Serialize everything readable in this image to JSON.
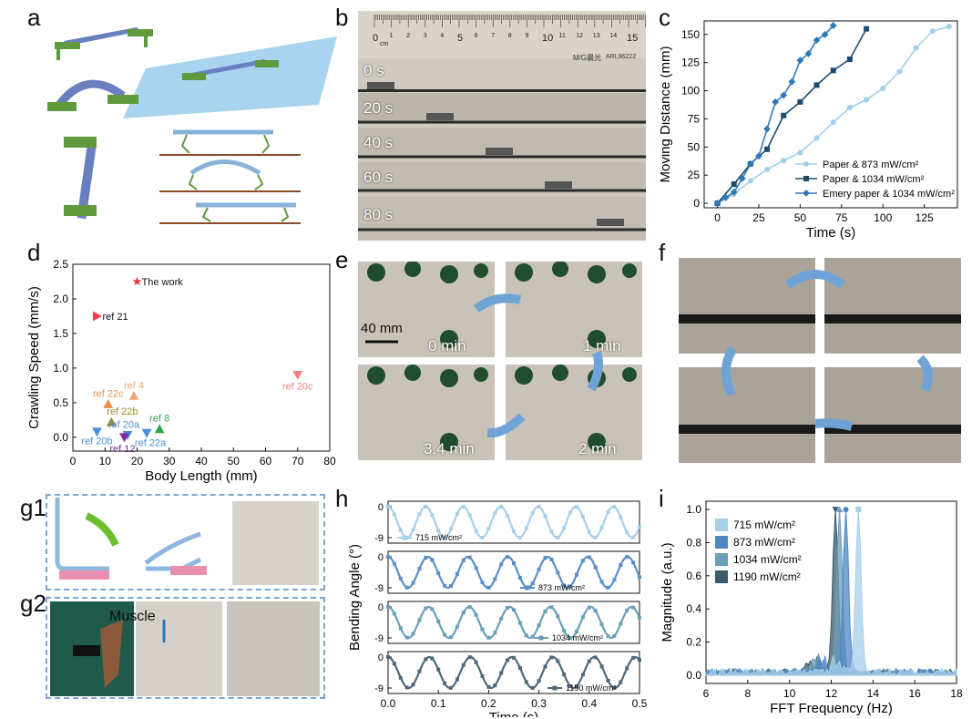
{
  "panels": {
    "a": "a",
    "b": "b",
    "c": "c",
    "d": "d",
    "e": "e",
    "f": "f",
    "g1": "g1",
    "g2": "g2",
    "h": "h",
    "i": "i"
  },
  "panel_b": {
    "ruler_numbers": [
      "0",
      "1",
      "2",
      "3",
      "4",
      "5",
      "6",
      "7",
      "8",
      "9",
      "10",
      "11",
      "12",
      "13",
      "14",
      "15"
    ],
    "ruler_unit": "cm",
    "brand_text": "M/G晨光",
    "model_text": "ARL96222",
    "times": [
      "0 s",
      "20 s",
      "40 s",
      "60 s",
      "80 s"
    ]
  },
  "panel_e": {
    "scale_label": "40 mm",
    "times": [
      "0 min",
      "1 min",
      "3.4 min",
      "2 min"
    ]
  },
  "panel_g2": {
    "label": "Muscle"
  },
  "chart_data": [
    {
      "id": "c",
      "type": "line",
      "title": "",
      "xlabel": "Time (s)",
      "ylabel": "Moving Distance (mm)",
      "xlim": [
        -8,
        145
      ],
      "ylim": [
        -4,
        162
      ],
      "xticks": [
        0,
        25,
        50,
        75,
        100,
        125
      ],
      "yticks": [
        0,
        25,
        50,
        75,
        100,
        125,
        150
      ],
      "legend_position": "bottom-right",
      "series": [
        {
          "name": "Paper & 873 mW/cm²",
          "color": "#9fd0ea",
          "marker": "circle",
          "x": [
            0,
            10,
            20,
            30,
            40,
            50,
            60,
            70,
            80,
            90,
            100,
            110,
            120,
            130,
            140
          ],
          "y": [
            0,
            8,
            20,
            30,
            38,
            45,
            58,
            72,
            85,
            92,
            102,
            117,
            138,
            153,
            157
          ]
        },
        {
          "name": "Paper & 1034 mW/cm²",
          "color": "#1e4a6e",
          "marker": "square",
          "x": [
            0,
            10,
            20,
            30,
            40,
            50,
            60,
            70,
            80,
            90
          ],
          "y": [
            0,
            17,
            35,
            48,
            78,
            90,
            105,
            118,
            128,
            155
          ]
        },
        {
          "name": "Emery paper & 1034 mW/cm²",
          "color": "#2f78b8",
          "marker": "diamond",
          "x": [
            0,
            5,
            10,
            15,
            20,
            25,
            30,
            35,
            40,
            45,
            50,
            55,
            60,
            65,
            70
          ],
          "y": [
            0,
            5,
            10,
            22,
            35,
            42,
            66,
            90,
            96,
            108,
            127,
            133,
            145,
            150,
            158
          ]
        }
      ]
    },
    {
      "id": "d",
      "type": "scatter",
      "title": "",
      "xlabel": "Body Length (mm)",
      "ylabel": "Crawling Speed (mm/s)",
      "xlim": [
        0,
        80
      ],
      "ylim": [
        -0.2,
        2.5
      ],
      "xticks": [
        0,
        10,
        20,
        30,
        40,
        50,
        60,
        70,
        80
      ],
      "yticks": [
        0.0,
        0.5,
        1.0,
        1.5,
        2.0,
        2.5
      ],
      "points": [
        {
          "label": "The work",
          "x": 20,
          "y": 2.25,
          "color": "#e8332a",
          "marker": "star",
          "label_color": "#111"
        },
        {
          "label": "ref 21",
          "x": 7.5,
          "y": 1.75,
          "color": "#e8454f",
          "marker": "tri-right",
          "label_color": "#111"
        },
        {
          "label": "ref 20c",
          "x": 70,
          "y": 0.9,
          "color": "#f08080",
          "marker": "tri-down",
          "label_color": "#f08080"
        },
        {
          "label": "ref 4",
          "x": 19,
          "y": 0.6,
          "color": "#f0a878",
          "marker": "tri-up",
          "label_color": "#f0a878"
        },
        {
          "label": "ref 22c",
          "x": 11,
          "y": 0.48,
          "color": "#e8904a",
          "marker": "tri-up",
          "label_color": "#e8904a"
        },
        {
          "label": "ref 22b",
          "x": 12,
          "y": 0.22,
          "color": "#9a8a2a",
          "marker": "tri-up",
          "label_color": "#9a8a2a"
        },
        {
          "label": "ref 8",
          "x": 27,
          "y": 0.12,
          "color": "#2ea84a",
          "marker": "tri-up",
          "label_color": "#2ea84a"
        },
        {
          "label": "ref 20a",
          "x": 23,
          "y": 0.06,
          "color": "#4a90d9",
          "marker": "tri-down",
          "label_color": "#4a90d9"
        },
        {
          "label": "ref 20b",
          "x": 7.5,
          "y": 0.08,
          "color": "#4a90d9",
          "marker": "tri-down",
          "label_color": "#4a90d9"
        },
        {
          "label": "ref 22a",
          "x": 17,
          "y": 0.03,
          "color": "#4a90d9",
          "marker": "tri-down",
          "label_color": "#4a90d9"
        },
        {
          "label": "ref 12",
          "x": 16,
          "y": 0.0,
          "color": "#7a2a9a",
          "marker": "tri-down",
          "label_color": "#7a2a9a"
        }
      ]
    },
    {
      "id": "h",
      "type": "line",
      "title": "",
      "xlabel": "Time (s)",
      "ylabel": "Bending Angle (°)",
      "xlim": [
        0.0,
        0.5
      ],
      "xticks": [
        0.0,
        0.1,
        0.2,
        0.3,
        0.4,
        0.5
      ],
      "yticks_per_subplot": [
        0,
        -9
      ],
      "subplots": [
        {
          "name": "715 mW/cm²",
          "color": "#a7cfe9",
          "freq_hz": 13.4,
          "amp": 9,
          "offset": -4.5
        },
        {
          "name": "873 mW/cm²",
          "color": "#5b8ec8",
          "freq_hz": 12.6,
          "amp": 9,
          "offset": -4.5
        },
        {
          "name": "1034 mW/cm²",
          "color": "#6a9fb8",
          "freq_hz": 12.4,
          "amp": 9,
          "offset": -4.5
        },
        {
          "name": "1190 mW/cm²",
          "color": "#4f6878",
          "freq_hz": 12.2,
          "amp": 9,
          "offset": -4.5
        }
      ]
    },
    {
      "id": "i",
      "type": "area",
      "title": "",
      "xlabel": "FFT Frequency (Hz)",
      "ylabel": "Magnitude (a.u.)",
      "xlim": [
        6,
        18
      ],
      "ylim": [
        -0.05,
        1.05
      ],
      "xticks": [
        6,
        8,
        10,
        12,
        14,
        16,
        18
      ],
      "yticks": [
        0.0,
        0.2,
        0.4,
        0.6,
        0.8,
        1.0
      ],
      "legend_position": "top-left",
      "series": [
        {
          "name": "715 mW/cm²",
          "color": "#a7cfe9",
          "marker": "square",
          "peak": 13.3
        },
        {
          "name": "873 mW/cm²",
          "color": "#4f86c6",
          "marker": "circle",
          "peak": 12.7
        },
        {
          "name": "1034 mW/cm²",
          "color": "#6a9fb8",
          "marker": "tri-up",
          "peak": 12.4
        },
        {
          "name": "1190 mW/cm²",
          "color": "#3a5a6a",
          "marker": "tri-down",
          "peak": 12.2
        }
      ]
    }
  ]
}
